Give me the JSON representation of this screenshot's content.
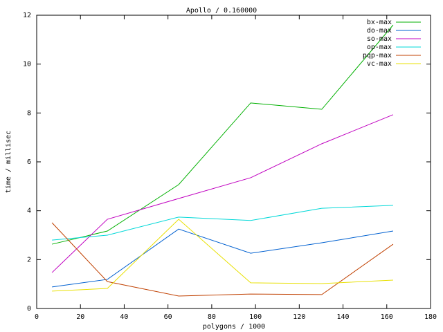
{
  "chart_data": {
    "type": "line",
    "title": "Apollo / 0.160000",
    "x_label": "polygons / 1000",
    "y_label": "time / millisec",
    "x": [
      7,
      32.3,
      64.9,
      97.8,
      130.3,
      162.9
    ],
    "series": [
      {
        "name": "bx-max",
        "color": "#00b000",
        "values": [
          2.63,
          3.17,
          5.07,
          8.41,
          8.15,
          11.6
        ]
      },
      {
        "name": "do-max",
        "color": "#0060d0",
        "values": [
          0.88,
          1.19,
          3.25,
          2.26,
          2.69,
          3.17
        ]
      },
      {
        "name": "so-max",
        "color": "#c000c0",
        "values": [
          1.47,
          3.65,
          4.5,
          5.35,
          6.74,
          7.93
        ]
      },
      {
        "name": "op-max",
        "color": "#00d8d8",
        "values": [
          2.8,
          3.0,
          3.74,
          3.6,
          4.1,
          4.22
        ]
      },
      {
        "name": "pqp-max",
        "color": "#c04000",
        "values": [
          3.51,
          1.1,
          0.51,
          0.59,
          0.57,
          2.63
        ]
      },
      {
        "name": "vc-max",
        "color": "#e8e000",
        "values": [
          0.71,
          0.82,
          3.65,
          1.05,
          1.02,
          1.16
        ]
      }
    ],
    "xlim": [
      0,
      180
    ],
    "xticks": [
      0,
      20,
      40,
      60,
      80,
      100,
      120,
      140,
      160,
      180
    ],
    "ylim": [
      0,
      12
    ],
    "yticks": [
      0,
      2,
      4,
      6,
      8,
      10,
      12
    ],
    "legend": "top-right"
  }
}
